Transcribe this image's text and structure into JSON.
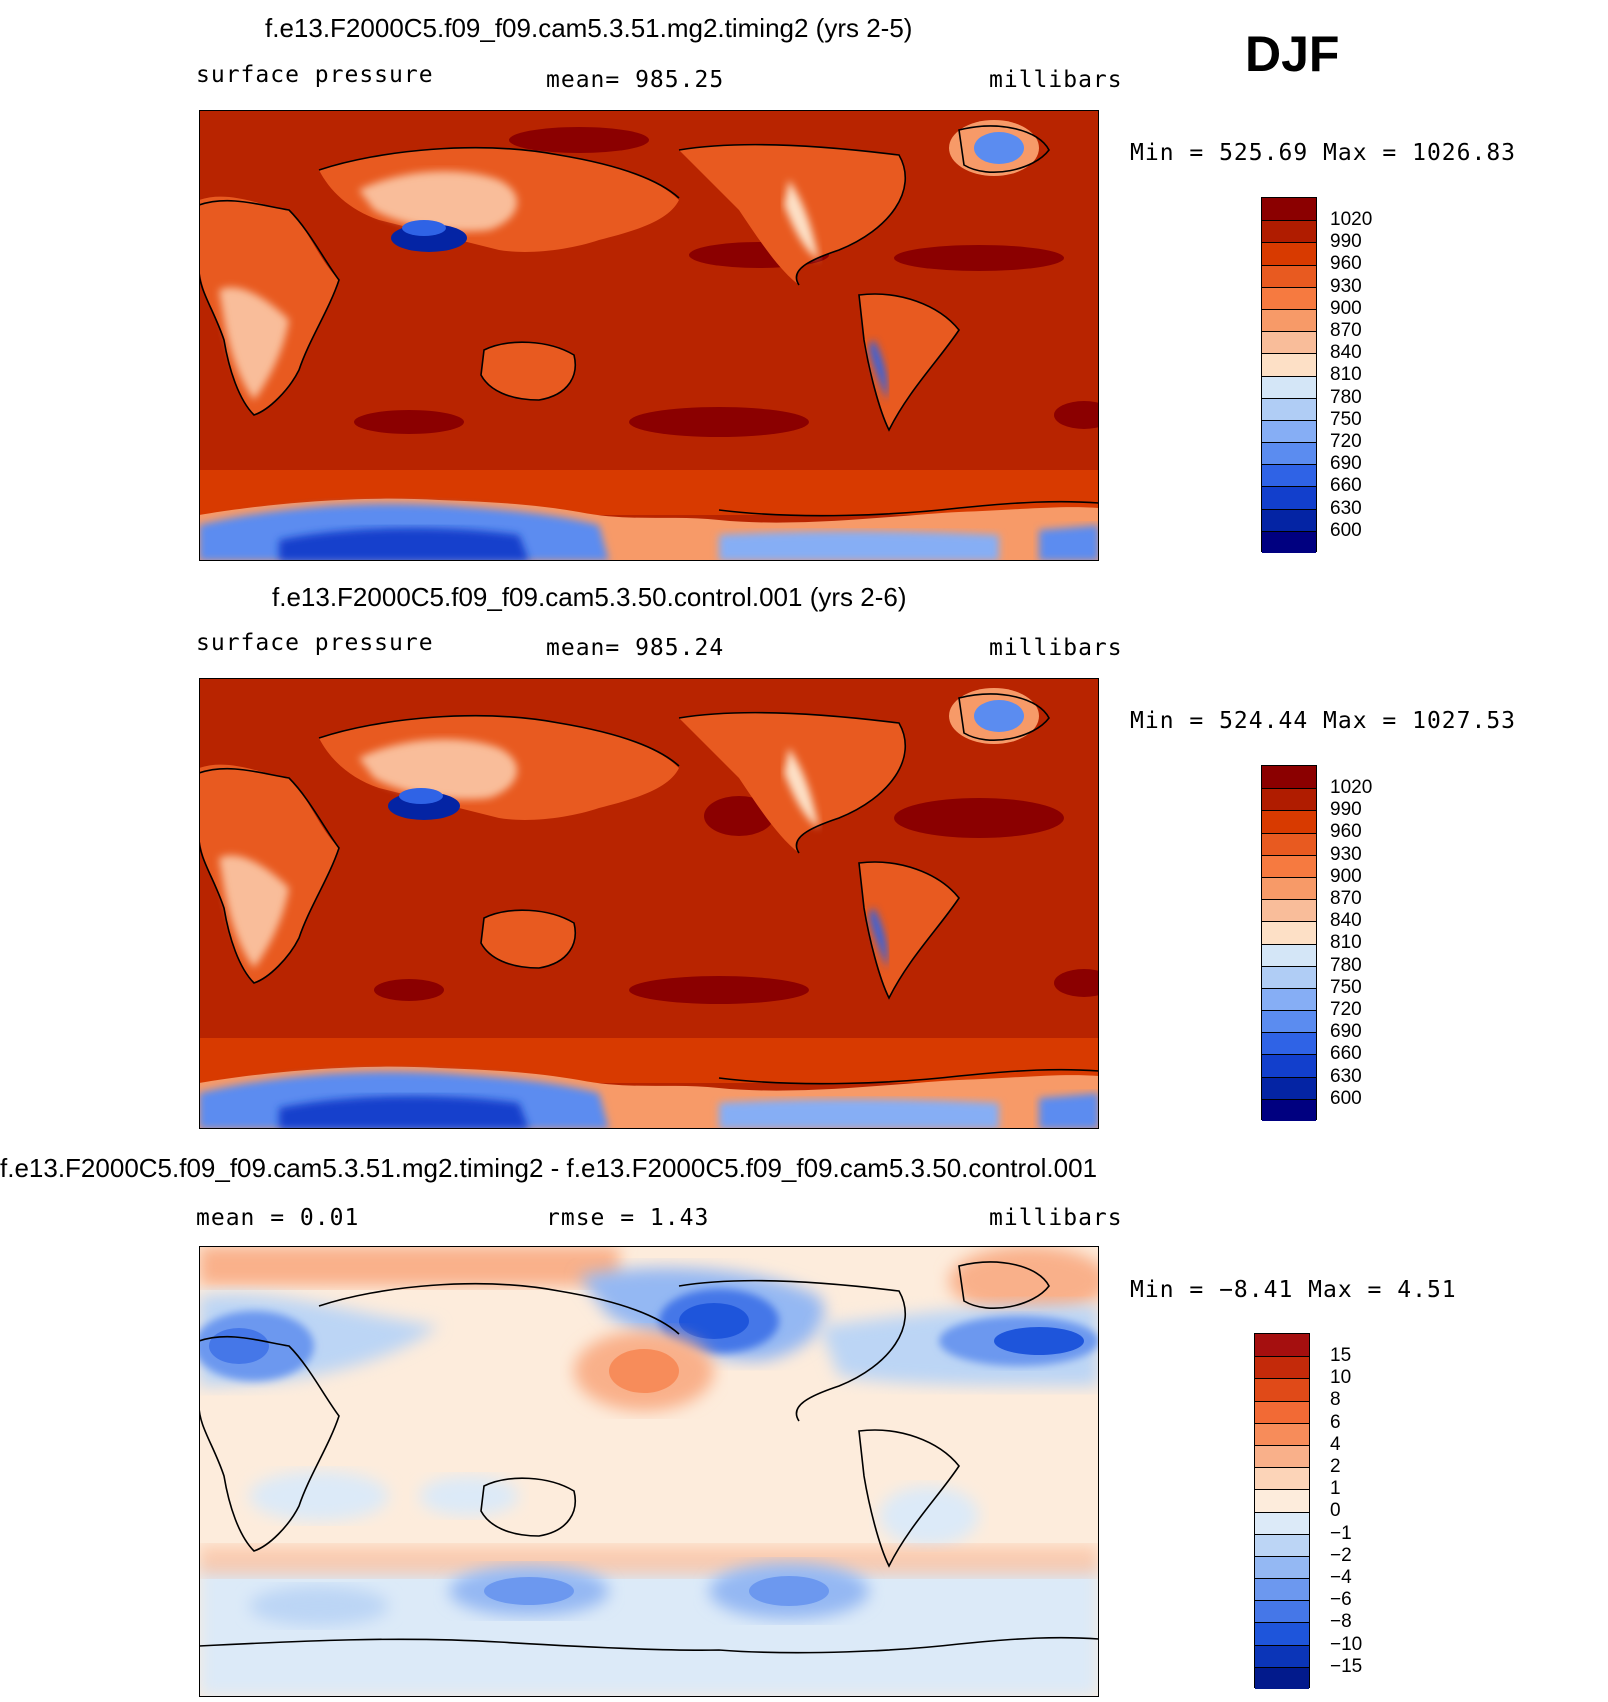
{
  "season": "DJF",
  "panels": [
    {
      "title": "f.e13.F2000C5.f09_f09.cam5.3.51.mg2.timing2 (yrs 2-5)",
      "left_label": "surface  pressure",
      "center_label": "mean=  985.25",
      "right_label": "millibars",
      "minmax": "Min  =  525.69  Max  =  1026.83",
      "levels": [
        "1020",
        "990",
        "960",
        "930",
        "900",
        "870",
        "840",
        "810",
        "780",
        "750",
        "720",
        "690",
        "660",
        "630",
        "600"
      ],
      "colors": [
        "#8b0000",
        "#b01c00",
        "#d83a00",
        "#e85a20",
        "#f67a40",
        "#f79a68",
        "#f9bd9a",
        "#fde0c6",
        "#d4e6f7",
        "#b0cdf5",
        "#86aef5",
        "#5b8cf0",
        "#2f63e6",
        "#123fcc",
        "#0424a4",
        "#000080"
      ]
    },
    {
      "title": "f.e13.F2000C5.f09_f09.cam5.3.50.control.001 (yrs 2-6)",
      "left_label": "surface  pressure",
      "center_label": "mean=  985.24",
      "right_label": "millibars",
      "minmax": "Min  =  524.44  Max  =  1027.53",
      "levels": [
        "1020",
        "990",
        "960",
        "930",
        "900",
        "870",
        "840",
        "810",
        "780",
        "750",
        "720",
        "690",
        "660",
        "630",
        "600"
      ],
      "colors": [
        "#8b0000",
        "#b01c00",
        "#d83a00",
        "#e85a20",
        "#f67a40",
        "#f79a68",
        "#f9bd9a",
        "#fde0c6",
        "#d4e6f7",
        "#b0cdf5",
        "#86aef5",
        "#5b8cf0",
        "#2f63e6",
        "#123fcc",
        "#0424a4",
        "#000080"
      ]
    },
    {
      "title": "f.e13.F2000C5.f09_f09.cam5.3.51.mg2.timing2 - f.e13.F2000C5.f09_f09.cam5.3.50.control.001",
      "left_label": "mean  =      0.01",
      "center_label": "rmse  =      1.43",
      "right_label": "millibars",
      "minmax": "Min  =    −8.41  Max  =      4.51",
      "levels": [
        "15",
        "10",
        "8",
        "6",
        "4",
        "2",
        "1",
        "0",
        "−1",
        "−2",
        "−4",
        "−6",
        "−8",
        "−10",
        "−15"
      ],
      "colors": [
        "#a50f0f",
        "#c42a0a",
        "#e04a18",
        "#f26a35",
        "#f78c5a",
        "#f9b08a",
        "#fcd4b8",
        "#fdecdc",
        "#dceaf8",
        "#bcd5f5",
        "#94b8f3",
        "#6c98ef",
        "#4577e8",
        "#1e55db",
        "#0b35b8",
        "#021a8c"
      ]
    }
  ],
  "chart_data": {
    "type": "heatmap",
    "season": "DJF",
    "variable": "surface  pressure",
    "units": "millibars",
    "maps": [
      {
        "title": "f.e13.F2000C5.f09_f09.cam5.3.51.mg2.timing2 (yrs 2-5)",
        "mean": 985.25,
        "min": 525.69,
        "max": 1026.83,
        "contour_levels": [
          600,
          630,
          660,
          690,
          720,
          750,
          780,
          810,
          840,
          870,
          900,
          930,
          960,
          990,
          1020
        ]
      },
      {
        "title": "f.e13.F2000C5.f09_f09.cam5.3.50.control.001 (yrs 2-6)",
        "mean": 985.24,
        "min": 524.44,
        "max": 1027.53,
        "contour_levels": [
          600,
          630,
          660,
          690,
          720,
          750,
          780,
          810,
          840,
          870,
          900,
          930,
          960,
          990,
          1020
        ]
      },
      {
        "title": "f.e13.F2000C5.f09_f09.cam5.3.51.mg2.timing2 - f.e13.F2000C5.f09_f09.cam5.3.50.control.001",
        "mean": 0.01,
        "rmse": 1.43,
        "min": -8.41,
        "max": 4.51,
        "contour_levels": [
          -15,
          -10,
          -8,
          -6,
          -4,
          -2,
          -1,
          0,
          1,
          2,
          4,
          6,
          8,
          10,
          15
        ]
      }
    ]
  }
}
